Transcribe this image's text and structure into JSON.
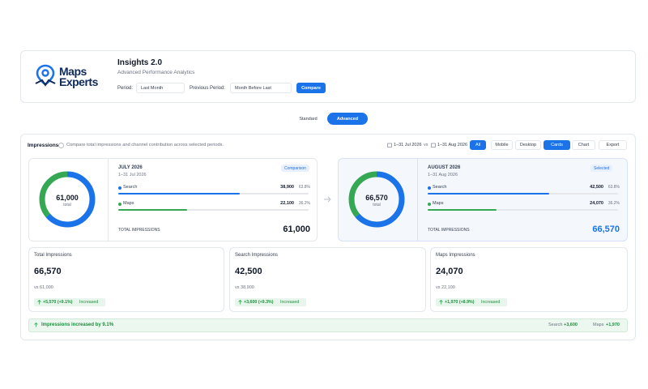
{
  "header": {
    "logo": [
      "Maps",
      "Experts"
    ],
    "title": "Insights 2.0",
    "subtitle": "Advanced Performance Analytics",
    "period_label": "Period:",
    "period": "Last Month",
    "previous_label": "Previous Period:",
    "previous": "Month Before Last",
    "compare": "Compare"
  },
  "modes": [
    "Standard",
    "Advanced"
  ],
  "panel": {
    "title": "Impressions",
    "description": "Compare total impressions and channel contribution across selected periods.",
    "range_a": "1–31 Jul 2026",
    "vs": "vs",
    "range_b": "1–31 Aug 2026",
    "filters": [
      "All",
      "Mobile",
      "Desktop"
    ],
    "views": [
      "Cards",
      "Chart"
    ],
    "export": "Export"
  },
  "periods": [
    {
      "total": "61,000",
      "total_caption": "total",
      "month": "JULY 2026",
      "range": "1–31 Jul 2026",
      "badge": "Comparison",
      "channels": [
        {
          "name": "Search",
          "value": "38,900",
          "share": "63.8%"
        },
        {
          "name": "Maps",
          "value": "22,100",
          "share": "36.2%"
        }
      ],
      "total_label": "TOTAL IMPRESSIONS"
    },
    {
      "total": "66,570",
      "total_caption": "total",
      "month": "AUGUST 2026",
      "range": "1–31 Aug 2026",
      "badge": "Selected",
      "channels": [
        {
          "name": "Search",
          "value": "42,500",
          "share": "63.8%"
        },
        {
          "name": "Maps",
          "value": "24,070",
          "share": "36.2%"
        }
      ],
      "total_label": "TOTAL IMPRESSIONS"
    }
  ],
  "metrics": [
    {
      "title": "Total Impressions",
      "value": "66,570",
      "previous": "vs 61,000",
      "change": "+5,570 (+9.1%)",
      "status": "Increased"
    },
    {
      "title": "Search Impressions",
      "value": "42,500",
      "previous": "vs 38,900",
      "change": "+3,600 (+9.3%)",
      "status": "Increased"
    },
    {
      "title": "Maps Impressions",
      "value": "24,070",
      "previous": "vs 22,100",
      "change": "+1,970 (+8.9%)",
      "status": "Increased"
    }
  ],
  "summary": {
    "text": "Impressions increased by 9.1%",
    "items": [
      {
        "name": "Search",
        "value": "+3,600"
      },
      {
        "name": "Maps",
        "value": "+1,970"
      }
    ]
  }
}
